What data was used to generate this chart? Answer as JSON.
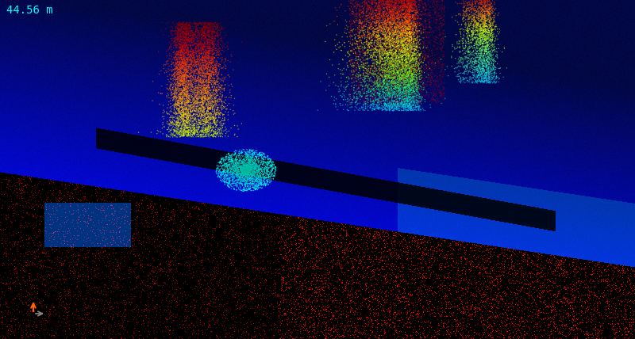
{
  "title": "44.56 m",
  "title_color": "#00ffff",
  "title_fontsize": 10,
  "bg_color": "#000000",
  "figsize": [
    8.0,
    4.28
  ],
  "dpi": 100
}
